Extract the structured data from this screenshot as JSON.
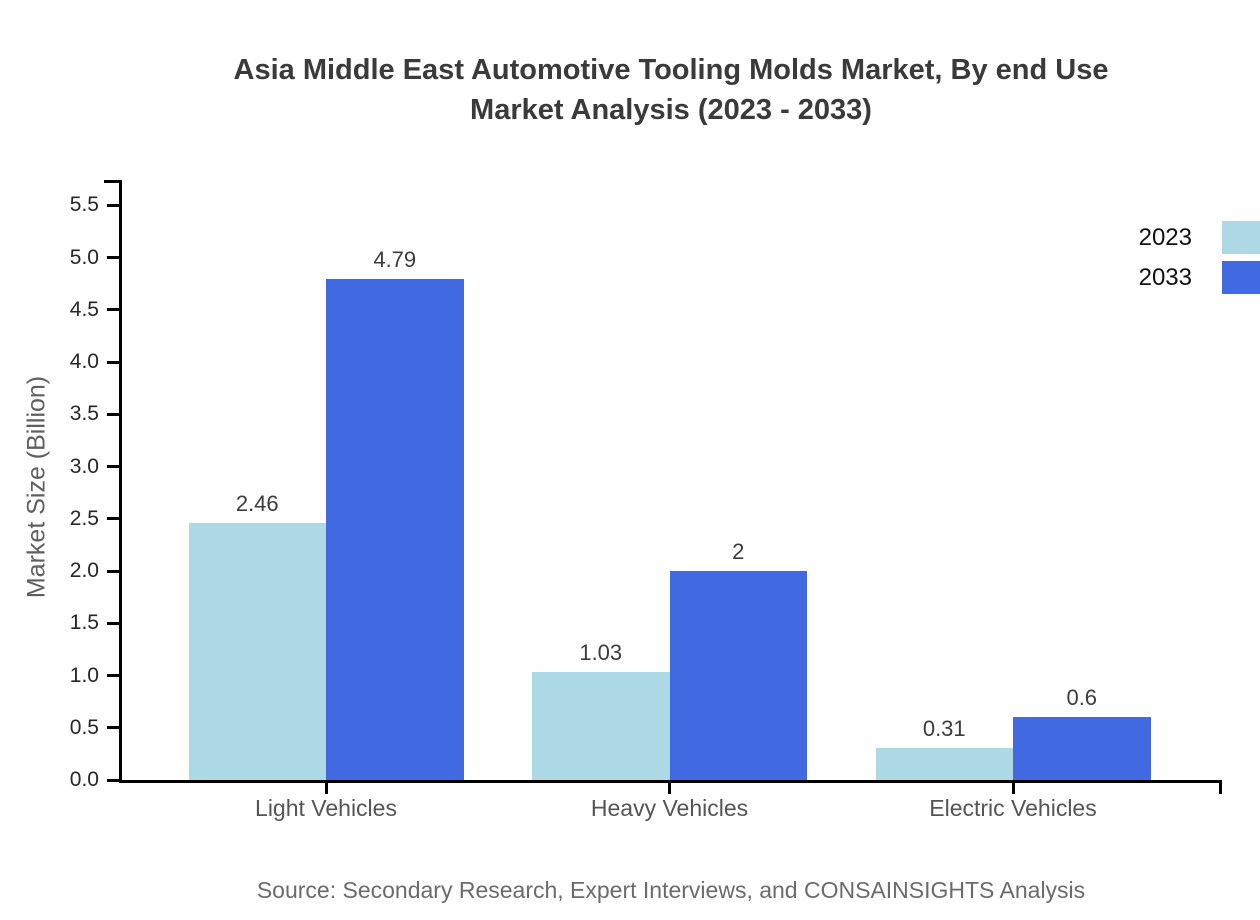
{
  "chart": {
    "title_line1": "Asia Middle East Automotive Tooling Molds Market, By end Use",
    "title_line2": "Market Analysis (2023 - 2033)",
    "ylabel": "Market Size (Billion)",
    "source": "Source: Secondary Research, Expert Interviews, and CONSAINSIGHTS Analysis",
    "colors": {
      "series_2023": "#ADD8E6",
      "series_2033": "#4169E1",
      "axis": "#000000",
      "title_text": "#3A3A3A",
      "tick_text": "#262626",
      "category_text": "#555555",
      "source_text": "#6B6B6B"
    }
  },
  "chart_data": {
    "type": "bar",
    "title": "Asia Middle East Automotive Tooling Molds Market, By end Use Market Analysis (2023 - 2033)",
    "categories": [
      "Light Vehicles",
      "Heavy Vehicles",
      "Electric Vehicles"
    ],
    "series": [
      {
        "name": "2023",
        "color": "#ADD8E6",
        "values": [
          2.46,
          1.03,
          0.31
        ],
        "data_labels": [
          "2.46",
          "1.03",
          "0.31"
        ]
      },
      {
        "name": "2033",
        "color": "#4169E1",
        "values": [
          4.79,
          2,
          0.6
        ],
        "data_labels": [
          "4.79",
          "2",
          "0.6"
        ]
      }
    ],
    "xlabel": "",
    "ylabel": "Market Size (Billion)",
    "ylim": [
      0,
      5.5
    ],
    "ytick_step": 0.5,
    "ytick_labels": [
      "0.0",
      "0.5",
      "1.0",
      "1.5",
      "2.0",
      "2.5",
      "3.0",
      "3.5",
      "4.0",
      "4.5",
      "5.0",
      "5.5"
    ],
    "grid": false,
    "legend_position": "top-right"
  }
}
